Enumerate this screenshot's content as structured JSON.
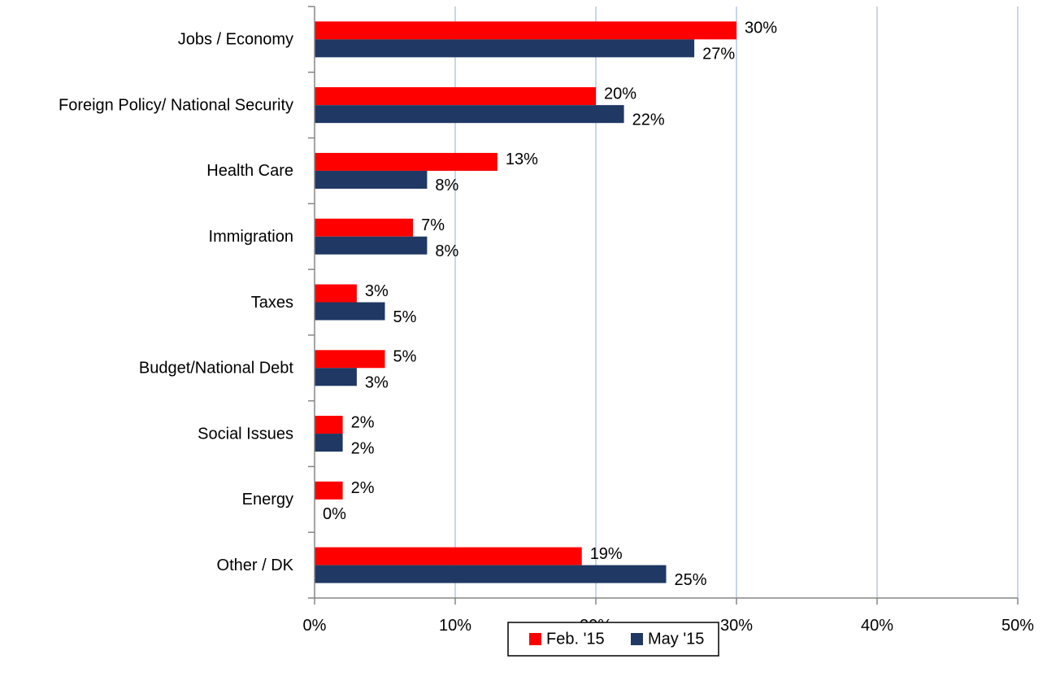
{
  "chart_data": {
    "type": "bar",
    "orientation": "horizontal",
    "categories": [
      "Jobs / Economy",
      "Foreign Policy/ National Security",
      "Health Care",
      "Immigration",
      "Taxes",
      "Budget/National Debt",
      "Social Issues",
      "Energy",
      "Other / DK"
    ],
    "series": [
      {
        "name": "Feb. '15",
        "color": "#ff0000",
        "values": [
          30,
          20,
          13,
          7,
          3,
          5,
          2,
          2,
          19
        ],
        "labels": [
          "30%",
          "20%",
          "13%",
          "7%",
          "3%",
          "5%",
          "2%",
          "2%",
          "19%"
        ]
      },
      {
        "name": "May '15",
        "color": "#1f3864",
        "values": [
          27,
          22,
          8,
          8,
          5,
          3,
          2,
          0,
          25
        ],
        "labels": [
          "27%",
          "22%",
          "8%",
          "8%",
          "5%",
          "3%",
          "2%",
          "0%",
          "25%"
        ]
      }
    ],
    "xlim": [
      0,
      50
    ],
    "xticks": [
      0,
      10,
      20,
      30,
      40,
      50
    ],
    "xtick_labels": [
      "0%",
      "10%",
      "20%",
      "30%",
      "40%",
      "50%"
    ],
    "grid": "vertical",
    "grid_color": "#b7c9e2",
    "legend": "bottom-center",
    "title": "",
    "xlabel": "",
    "ylabel": ""
  }
}
